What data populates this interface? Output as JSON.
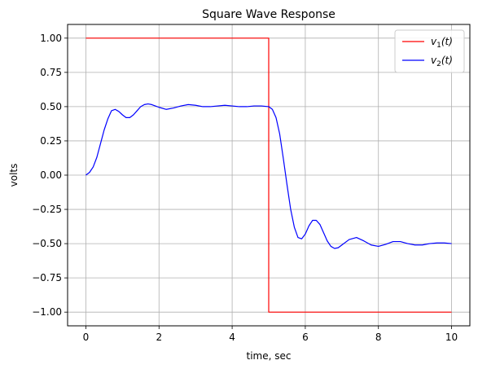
{
  "chart_data": {
    "type": "line",
    "title": "Square Wave Response",
    "xlabel": "time, sec",
    "ylabel": "volts",
    "xlim": [
      -0.5,
      10.5
    ],
    "ylim": [
      -1.1,
      1.1
    ],
    "xticks": [
      0,
      2,
      4,
      6,
      8,
      10
    ],
    "xtick_labels": [
      "0",
      "2",
      "4",
      "6",
      "8",
      "10"
    ],
    "yticks": [
      1.0,
      0.75,
      0.5,
      0.25,
      0.0,
      -0.25,
      -0.5,
      -0.75,
      -1.0
    ],
    "ytick_labels": [
      "1.00",
      "0.75",
      "0.50",
      "0.25",
      "0.00",
      "−0.25",
      "−0.50",
      "−0.75",
      "−1.00"
    ],
    "grid": true,
    "legend_position": "top-right",
    "series": [
      {
        "name": "v1(t)",
        "label_main": "v",
        "label_sub": "1",
        "label_tail": "(t)",
        "color": "#ff0000",
        "x": [
          0,
          5,
          5,
          10
        ],
        "y": [
          1,
          1,
          -1,
          -1
        ]
      },
      {
        "name": "v2(t)",
        "label_main": "v",
        "label_sub": "2",
        "label_tail": "(t)",
        "color": "#0000ff",
        "x": [
          0,
          0.1,
          0.2,
          0.3,
          0.4,
          0.5,
          0.6,
          0.7,
          0.8,
          0.9,
          1.0,
          1.1,
          1.2,
          1.3,
          1.4,
          1.5,
          1.6,
          1.7,
          1.8,
          1.9,
          2.0,
          2.2,
          2.4,
          2.6,
          2.8,
          3.0,
          3.2,
          3.4,
          3.6,
          3.8,
          4.0,
          4.2,
          4.4,
          4.6,
          4.8,
          5.0,
          5.1,
          5.2,
          5.3,
          5.4,
          5.5,
          5.6,
          5.7,
          5.8,
          5.9,
          6.0,
          6.1,
          6.2,
          6.3,
          6.4,
          6.5,
          6.6,
          6.7,
          6.8,
          6.9,
          7.0,
          7.2,
          7.4,
          7.6,
          7.8,
          8.0,
          8.2,
          8.4,
          8.6,
          8.8,
          9.0,
          9.2,
          9.4,
          9.6,
          9.8,
          10.0
        ],
        "y": [
          0.0,
          0.02,
          0.06,
          0.13,
          0.23,
          0.33,
          0.41,
          0.47,
          0.48,
          0.465,
          0.44,
          0.42,
          0.42,
          0.44,
          0.47,
          0.5,
          0.515,
          0.52,
          0.515,
          0.505,
          0.495,
          0.48,
          0.49,
          0.505,
          0.515,
          0.51,
          0.5,
          0.5,
          0.505,
          0.51,
          0.505,
          0.5,
          0.5,
          0.505,
          0.505,
          0.5,
          0.48,
          0.42,
          0.3,
          0.12,
          -0.07,
          -0.25,
          -0.38,
          -0.455,
          -0.465,
          -0.43,
          -0.37,
          -0.33,
          -0.33,
          -0.36,
          -0.42,
          -0.48,
          -0.52,
          -0.535,
          -0.53,
          -0.51,
          -0.47,
          -0.455,
          -0.48,
          -0.51,
          -0.52,
          -0.505,
          -0.485,
          -0.485,
          -0.5,
          -0.51,
          -0.51,
          -0.5,
          -0.495,
          -0.495,
          -0.5
        ]
      }
    ]
  }
}
